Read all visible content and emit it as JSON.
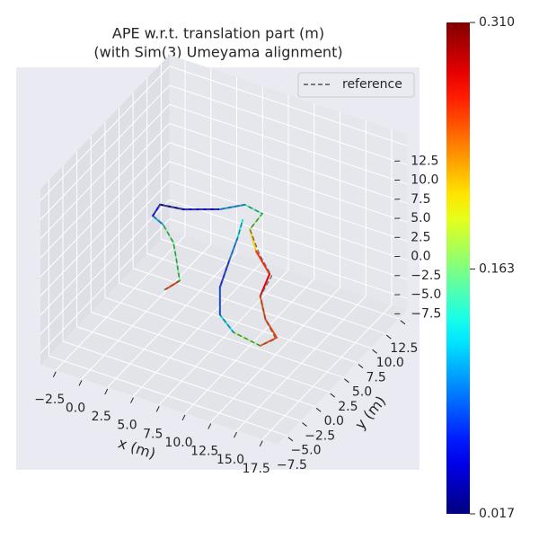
{
  "chart_data": {
    "type": "trajectory3d",
    "title_lines": [
      "APE w.r.t. translation part (m)",
      "(with Sim(3) Umeyama alignment)"
    ],
    "xlabel": "x (m)",
    "ylabel": "y (m)",
    "xlim": [
      -4,
      19
    ],
    "ylim": [
      -9,
      14
    ],
    "zlim": [
      -9,
      14
    ],
    "xticks": [
      {
        "value": -2.5,
        "label": "−2.5"
      },
      {
        "value": 0,
        "label": "0.0"
      },
      2.5,
      {
        "value": 5,
        "label": "5.0"
      },
      7.5,
      {
        "value": 10,
        "label": "10.0"
      },
      12.5,
      {
        "value": 15,
        "label": "15.0"
      },
      17.5
    ],
    "yticks": [
      {
        "value": -7.5,
        "label": "−7.5"
      },
      {
        "value": -5,
        "label": "−5.0"
      },
      {
        "value": -2.5,
        "label": "−2.5"
      },
      {
        "value": 0,
        "label": "0.0"
      },
      2.5,
      {
        "value": 5,
        "label": "5.0"
      },
      7.5,
      {
        "value": 10,
        "label": "10.0"
      },
      12.5
    ],
    "zticks": [
      {
        "value": -7.5,
        "label": "−7.5"
      },
      {
        "value": -5,
        "label": "−5.0"
      },
      {
        "value": -2.5,
        "label": "−2.5"
      },
      {
        "value": 0,
        "label": "0.0"
      },
      2.5,
      {
        "value": 5,
        "label": "5.0"
      },
      7.5,
      {
        "value": 10,
        "label": "10.0"
      },
      12.5
    ],
    "grid": true,
    "legend": "upper right",
    "trajectory": {
      "x": [
        2.2,
        3.5,
        3.2,
        2.9,
        1.9,
        0.9,
        1.6,
        3.9,
        7.4,
        9.8,
        11.5,
        10.3,
        10.9,
        12.2,
        11.3,
        11.8,
        12.9,
        11.3,
        8.7,
        7.4,
        7.4,
        8.3,
        9.1,
        9.6
      ],
      "y": [
        2,
        2,
        2,
        2,
        2,
        2,
        2,
        2,
        2,
        2,
        2,
        2,
        2,
        2,
        2,
        2,
        2,
        2,
        2,
        2,
        2,
        2,
        2,
        2
      ],
      "z": [
        -4.7,
        -3.0,
        -0.5,
        1.7,
        3.6,
        4.3,
        6.1,
        6.5,
        8.1,
        9.8,
        9.4,
        6.8,
        4.2,
        1.8,
        -1.5,
        -4.3,
        -6.2,
        -8.0,
        -7.4,
        -5.7,
        -2.1,
        1.8,
        5.1,
        7.7
      ],
      "ape": [
        0.31,
        0.2,
        0.12,
        0.2,
        0.12,
        0.09,
        0.02,
        0.03,
        0.06,
        0.14,
        0.15,
        0.18,
        0.25,
        0.27,
        0.29,
        0.21,
        0.3,
        0.2,
        0.14,
        0.1,
        0.05,
        0.08,
        0.11,
        0.14
      ]
    },
    "series": [
      {
        "name": "reference",
        "color": "#555555",
        "x": [
          2.0,
          3.5,
          3.2,
          2.9,
          1.9,
          0.9,
          1.6,
          3.9,
          7.4,
          9.8,
          11.5,
          10.3,
          11.2,
          12.4,
          11.3,
          11.8,
          12.8,
          11.3,
          8.7,
          7.4,
          7.4,
          8.3,
          9.1,
          9.6
        ],
        "y": [
          2,
          2,
          2,
          2,
          2,
          2,
          2,
          2,
          2,
          2,
          2,
          2,
          2,
          2,
          2,
          2,
          2,
          2,
          2,
          2,
          2,
          2,
          2,
          2
        ],
        "z": [
          -4.9,
          -3.0,
          -0.5,
          1.7,
          3.6,
          4.3,
          6.1,
          6.5,
          8.1,
          9.8,
          9.4,
          6.8,
          4.0,
          1.6,
          -1.5,
          -4.3,
          -6.4,
          -8.0,
          -7.4,
          -5.7,
          -2.1,
          1.8,
          5.1,
          7.7
        ]
      }
    ],
    "colorbar": {
      "clim": [
        0.017,
        0.31
      ],
      "ticks": [
        0.017,
        0.163,
        {
          "value": 0.31,
          "label": "0.310"
        }
      ]
    }
  }
}
